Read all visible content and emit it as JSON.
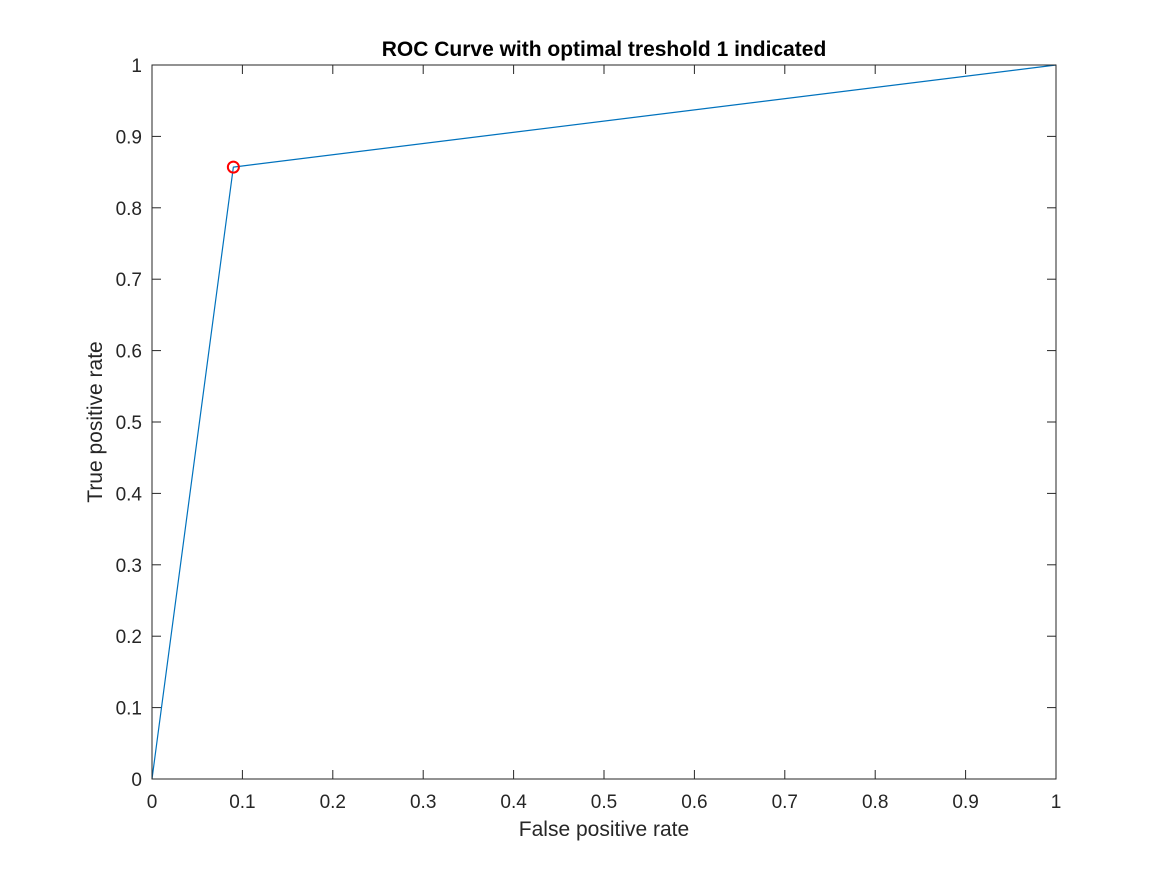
{
  "chart_data": {
    "type": "line",
    "title": "ROC Curve with optimal treshold 1 indicated",
    "xlabel": "False positive rate",
    "ylabel": "True positive rate",
    "xlim": [
      0,
      1
    ],
    "ylim": [
      0,
      1
    ],
    "grid": false,
    "box": true,
    "xticks": [
      0,
      0.1,
      0.2,
      0.3,
      0.4,
      0.5,
      0.6,
      0.7,
      0.8,
      0.9,
      1
    ],
    "xtick_labels": [
      "0",
      "0.1",
      "0.2",
      "0.3",
      "0.4",
      "0.5",
      "0.6",
      "0.7",
      "0.8",
      "0.9",
      "1"
    ],
    "yticks": [
      0,
      0.1,
      0.2,
      0.3,
      0.4,
      0.5,
      0.6,
      0.7,
      0.8,
      0.9,
      1
    ],
    "ytick_labels": [
      "0",
      "0.1",
      "0.2",
      "0.3",
      "0.4",
      "0.5",
      "0.6",
      "0.7",
      "0.8",
      "0.9",
      "1"
    ],
    "series": [
      {
        "x": [
          0,
          0.09,
          1
        ],
        "y": [
          0,
          0.857,
          1
        ],
        "color": "#0072bd",
        "style": "line"
      }
    ],
    "markers": [
      {
        "x": 0.09,
        "y": 0.857,
        "color": "#ff0000",
        "shape": "circle-open"
      }
    ]
  }
}
